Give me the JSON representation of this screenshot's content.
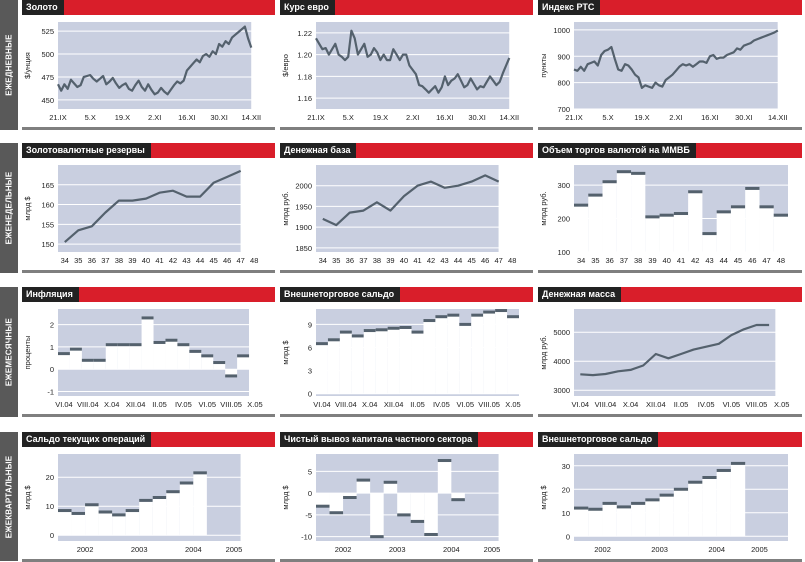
{
  "colors": {
    "title_bg": "#222222",
    "accent": "#d91e2a",
    "area": "#c9cfe0",
    "line": "#54616d",
    "grid": "#ffffff",
    "row_label": "#595959"
  },
  "row_labels": [
    "ЕЖЕДНЕВНЫЕ",
    "ЕЖЕНЕДЕЛЬНЫЕ",
    "ЕЖЕМЕСЯЧНЫЕ",
    "ЕЖЕКВАРТАЛЬНЫЕ"
  ],
  "chart_data": [
    {
      "id": "gold",
      "type": "line",
      "title": "Золото",
      "ylabel": "$/унция",
      "ylim": [
        440,
        535
      ],
      "yticks": [
        450,
        475,
        500,
        525
      ],
      "x_labels": [
        "21.IX",
        "5.X",
        "19.X",
        "2.XI",
        "16.XI",
        "30.XI",
        "14.XII"
      ],
      "x_label_pos": [
        0,
        10,
        20,
        30,
        40,
        50,
        60
      ],
      "x_range": [
        0,
        63
      ],
      "shade_to": 60,
      "y": [
        467,
        460,
        467,
        462,
        472,
        468,
        464,
        466,
        475,
        476,
        477,
        473,
        470,
        473,
        476,
        467,
        470,
        474,
        468,
        463,
        466,
        468,
        462,
        460,
        466,
        471,
        464,
        460,
        467,
        461,
        456,
        458,
        463,
        459,
        456,
        461,
        466,
        470,
        468,
        471,
        482,
        486,
        490,
        494,
        491,
        498,
        500,
        497,
        503,
        500,
        511,
        508,
        514,
        511,
        518,
        521,
        524,
        527,
        530,
        517,
        507
      ]
    },
    {
      "id": "eur",
      "type": "line",
      "title": "Курс евро",
      "ylabel": "$/евро",
      "ylim": [
        1.15,
        1.23
      ],
      "yticks": [
        1.16,
        1.18,
        1.2,
        1.22
      ],
      "yfmt": 2,
      "x_labels": [
        "21.IX",
        "5.X",
        "19.X",
        "2.XI",
        "16.XI",
        "30.XI",
        "14.XII"
      ],
      "x_label_pos": [
        0,
        10,
        20,
        30,
        40,
        50,
        60
      ],
      "x_range": [
        0,
        63
      ],
      "shade_to": 60,
      "y": [
        1.215,
        1.21,
        1.205,
        1.206,
        1.2,
        1.205,
        1.21,
        1.2,
        1.198,
        1.195,
        1.198,
        1.222,
        1.215,
        1.2,
        1.205,
        1.21,
        1.198,
        1.2,
        1.206,
        1.202,
        1.195,
        1.2,
        1.195,
        1.195,
        1.205,
        1.2,
        1.195,
        1.2,
        1.2,
        1.19,
        1.186,
        1.182,
        1.172,
        1.171,
        1.168,
        1.165,
        1.168,
        1.171,
        1.165,
        1.17,
        1.18,
        1.172,
        1.176,
        1.178,
        1.182,
        1.176,
        1.17,
        1.172,
        1.178,
        1.173,
        1.168,
        1.171,
        1.17,
        1.175,
        1.18,
        1.176,
        1.172,
        1.175,
        1.183,
        1.19,
        1.197
      ]
    },
    {
      "id": "rts",
      "type": "line",
      "title": "Индекс РТС",
      "ylabel": "пункты",
      "ylim": [
        700,
        1030
      ],
      "yticks": [
        700,
        800,
        900,
        1000
      ],
      "x_labels": [
        "21.IX",
        "5.X",
        "19.X",
        "2.XI",
        "16.XI",
        "30.XI",
        "14.XII"
      ],
      "x_label_pos": [
        0,
        10,
        20,
        30,
        40,
        50,
        60
      ],
      "x_range": [
        0,
        63
      ],
      "shade_to": 60,
      "y": [
        850,
        845,
        860,
        845,
        870,
        875,
        880,
        865,
        905,
        920,
        925,
        935,
        890,
        850,
        845,
        870,
        865,
        850,
        830,
        820,
        780,
        790,
        785,
        780,
        800,
        790,
        785,
        810,
        820,
        830,
        845,
        860,
        870,
        865,
        870,
        860,
        870,
        880,
        880,
        875,
        900,
        905,
        890,
        895,
        895,
        905,
        910,
        915,
        930,
        925,
        940,
        945,
        950,
        960,
        965,
        970,
        975,
        980,
        985,
        990,
        998
      ]
    },
    {
      "id": "reserves",
      "type": "line",
      "title": "Золотовалютные резервы",
      "ylabel": "млрд $",
      "ylim": [
        148,
        170
      ],
      "yticks": [
        150,
        155,
        160,
        165
      ],
      "x_labels": [
        "34",
        "35",
        "36",
        "37",
        "38",
        "39",
        "40",
        "41",
        "42",
        "43",
        "44",
        "45",
        "46",
        "47",
        "48"
      ],
      "x_label_pos": [
        0,
        1,
        2,
        3,
        4,
        5,
        6,
        7,
        8,
        9,
        10,
        11,
        12,
        13,
        14
      ],
      "x_range": [
        -0.5,
        14.5
      ],
      "shade_to": 13,
      "x": [
        0,
        1,
        2,
        3,
        4,
        5,
        6,
        7,
        8,
        9,
        10,
        11,
        12,
        13
      ],
      "y": [
        150.5,
        153.5,
        154.5,
        158,
        161,
        161,
        161.5,
        163,
        163.5,
        162,
        162,
        165.5,
        167,
        168.5
      ]
    },
    {
      "id": "monetary_base",
      "type": "line",
      "title": "Денежная база",
      "ylabel": "млрд руб.",
      "ylim": [
        1840,
        2050
      ],
      "yticks": [
        1850,
        1900,
        1950,
        2000
      ],
      "x_labels": [
        "34",
        "35",
        "36",
        "37",
        "38",
        "39",
        "40",
        "41",
        "42",
        "43",
        "44",
        "45",
        "46",
        "47",
        "48"
      ],
      "x_label_pos": [
        0,
        1,
        2,
        3,
        4,
        5,
        6,
        7,
        8,
        9,
        10,
        11,
        12,
        13,
        14
      ],
      "x_range": [
        -0.5,
        14.5
      ],
      "shade_to": 13,
      "x": [
        0,
        1,
        2,
        3,
        4,
        5,
        6,
        7,
        8,
        9,
        10,
        11,
        12,
        13
      ],
      "y": [
        1920,
        1905,
        1935,
        1940,
        1960,
        1940,
        1975,
        2000,
        2010,
        1995,
        2000,
        2010,
        2025,
        2010
      ]
    },
    {
      "id": "fx_turnover",
      "type": "step",
      "title": "Объем торгов валютой на ММВБ",
      "ylabel": "млрд руб.",
      "ylim": [
        100,
        360
      ],
      "yticks": [
        100,
        200,
        300
      ],
      "x_labels": [
        "34",
        "35",
        "36",
        "37",
        "38",
        "39",
        "40",
        "41",
        "42",
        "43",
        "44",
        "45",
        "46",
        "47",
        "48"
      ],
      "x_label_pos": [
        0,
        1,
        2,
        3,
        4,
        5,
        6,
        7,
        8,
        9,
        10,
        11,
        12,
        13,
        14
      ],
      "x_range": [
        -0.5,
        14.5
      ],
      "shade_to": 14.5,
      "y": [
        240,
        270,
        310,
        340,
        335,
        205,
        210,
        215,
        280,
        155,
        220,
        235,
        290,
        235,
        210
      ]
    },
    {
      "id": "inflation",
      "type": "step",
      "title": "Инфляция",
      "ylabel": "проценты",
      "ylim": [
        -1.2,
        2.7
      ],
      "yticks": [
        -1,
        0,
        1,
        2
      ],
      "x_labels": [
        "VI.04",
        "VIII.04",
        "X.04",
        "XII.04",
        "II.05",
        "IV.05",
        "VI.05",
        "VIII.05",
        "X.05"
      ],
      "x_label_pos": [
        0,
        2,
        4,
        6,
        8,
        10,
        12,
        14,
        16
      ],
      "x_range": [
        -0.5,
        16.5
      ],
      "shade_to": 15.5,
      "y": [
        0.7,
        0.9,
        0.4,
        0.4,
        1.1,
        1.1,
        1.1,
        2.3,
        1.2,
        1.3,
        1.1,
        0.8,
        0.6,
        0.3,
        -0.3,
        0.6
      ]
    },
    {
      "id": "trade_balance_m",
      "type": "step",
      "title": "Внешнеторговое сальдо",
      "ylabel": "млрд $",
      "ylim": [
        -0.3,
        11
      ],
      "yticks": [
        0,
        3,
        6,
        9
      ],
      "x_labels": [
        "VI.04",
        "VIII.04",
        "X.04",
        "XII.04",
        "II.05",
        "IV.05",
        "VI.05",
        "VIII.05",
        "X.05"
      ],
      "x_label_pos": [
        0,
        2,
        4,
        6,
        8,
        10,
        12,
        14,
        16
      ],
      "x_range": [
        -0.5,
        16.5
      ],
      "shade_to": 16.5,
      "y": [
        6.5,
        7,
        8,
        7.5,
        8.2,
        8.3,
        8.5,
        8.6,
        8,
        9.5,
        10,
        10.2,
        9,
        10.2,
        10.6,
        10.8,
        10
      ]
    },
    {
      "id": "money_supply",
      "type": "line",
      "title": "Денежная масса",
      "ylabel": "млрд руб.",
      "ylim": [
        2800,
        5800
      ],
      "yticks": [
        3000,
        4000,
        5000
      ],
      "x_labels": [
        "VI.04",
        "VIII.04",
        "X.04",
        "XII.04",
        "II.05",
        "IV.05",
        "VI.05",
        "VIII.05",
        "X.05"
      ],
      "x_label_pos": [
        0,
        2,
        4,
        6,
        8,
        10,
        12,
        14,
        16
      ],
      "x_range": [
        -0.5,
        16.5
      ],
      "shade_to": 15.5,
      "x": [
        0,
        1,
        2,
        3,
        4,
        5,
        6,
        7,
        8,
        9,
        10,
        11,
        12,
        13,
        14,
        15
      ],
      "y": [
        3550,
        3520,
        3560,
        3650,
        3700,
        3850,
        4250,
        4100,
        4250,
        4400,
        4500,
        4600,
        4900,
        5100,
        5250,
        5250
      ]
    },
    {
      "id": "current_account",
      "type": "step",
      "title": "Сальдо текущих операций",
      "ylabel": "млрд $",
      "ylim": [
        -2,
        28
      ],
      "yticks": [
        0,
        10,
        20
      ],
      "x_labels": [
        "2002",
        "2003",
        "2004",
        "2005"
      ],
      "x_label_pos": [
        1.5,
        5.5,
        9.5,
        12.5
      ],
      "x_range": [
        -0.5,
        14.5
      ],
      "shade_to": 13,
      "y": [
        8.5,
        7.5,
        10.5,
        8,
        7,
        8.5,
        12,
        13,
        15,
        18,
        21.5
      ]
    },
    {
      "id": "capital_outflow",
      "type": "step",
      "title": "Чистый вывоз капитала частного сектора",
      "ylabel": "млрд $",
      "ylim": [
        -11,
        9
      ],
      "yticks": [
        -10,
        -5,
        0,
        5
      ],
      "x_labels": [
        "2002",
        "2003",
        "2004",
        "2005"
      ],
      "x_label_pos": [
        1.5,
        5.5,
        9.5,
        12.5
      ],
      "x_range": [
        -0.5,
        14.5
      ],
      "shade_to": 13,
      "y": [
        -3,
        -4.5,
        -1,
        3,
        -10,
        2.5,
        -5,
        -6.5,
        -9.5,
        7.5,
        -1.5
      ]
    },
    {
      "id": "trade_balance_q",
      "type": "step",
      "title": "Внешнеторговое сальдо",
      "ylabel": "млрд $",
      "ylim": [
        -2,
        35
      ],
      "yticks": [
        0,
        10,
        20,
        30
      ],
      "x_labels": [
        "2002",
        "2003",
        "2004",
        "2005"
      ],
      "x_label_pos": [
        1.5,
        5.5,
        9.5,
        12.5
      ],
      "x_range": [
        -0.5,
        14.5
      ],
      "shade_to": 14.5,
      "y": [
        12,
        11.5,
        14,
        12.5,
        14,
        15.5,
        17.5,
        20,
        23,
        25,
        28,
        31
      ]
    }
  ]
}
